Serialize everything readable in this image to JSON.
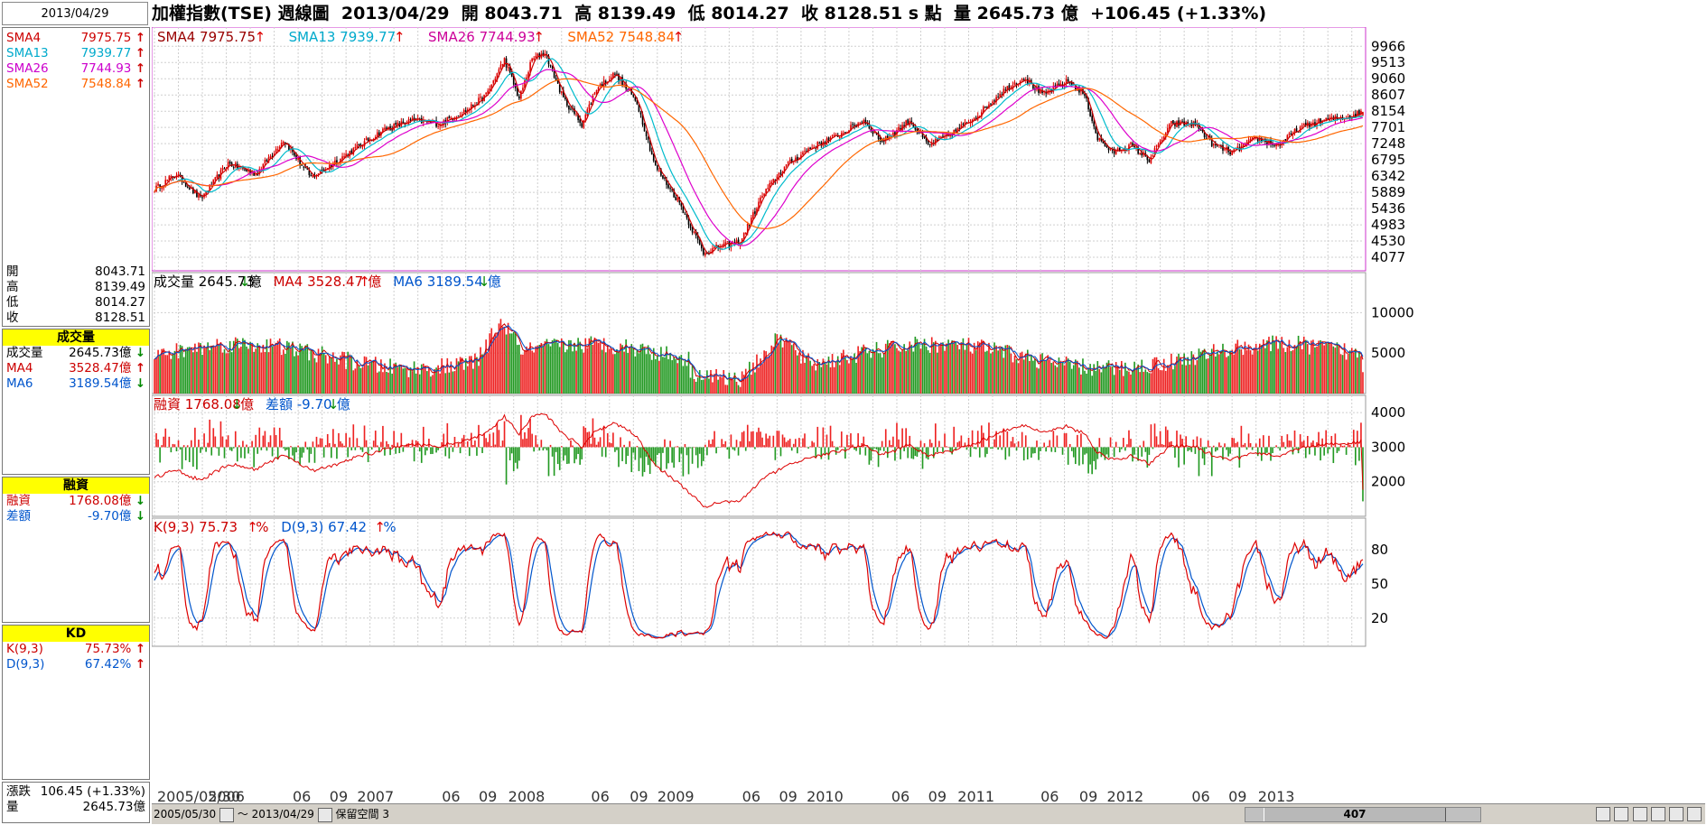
{
  "header": {
    "date": "2013/04/29",
    "title": "加權指數(TSE) 週線圖",
    "date_text": "2013/04/29",
    "open_label": "開",
    "open": "8043.71",
    "high_label": "高",
    "high": "8139.49",
    "low_label": "低",
    "low": "8014.27",
    "close_label": "收",
    "close": "8128.51",
    "unit": "s 點",
    "vol_label": "量",
    "volume": "2645.73 億",
    "change": "+106.45 (+1.33%)"
  },
  "left": {
    "ma": [
      {
        "label": "SMA4",
        "value": "7975.75",
        "color": "#cc0000"
      },
      {
        "label": "SMA13",
        "value": "7939.77",
        "color": "#00aacc"
      },
      {
        "label": "SMA26",
        "value": "7744.93",
        "color": "#cc00cc"
      },
      {
        "label": "SMA52",
        "value": "7548.84",
        "color": "#ff6600"
      }
    ],
    "ohlc": [
      {
        "label": "開",
        "value": "8043.71"
      },
      {
        "label": "高",
        "value": "8139.49"
      },
      {
        "label": "低",
        "value": "8014.27"
      },
      {
        "label": "收",
        "value": "8128.51"
      }
    ],
    "volume_title": "成交量",
    "volume_rows": [
      {
        "label": "成交量",
        "value": "2645.73億",
        "color": "#000000"
      },
      {
        "label": "MA4",
        "value": "3528.47億",
        "color": "#cc0000"
      },
      {
        "label": "MA6",
        "value": "3189.54億",
        "color": "#0055cc"
      }
    ],
    "margin_title": "融資",
    "margin_rows": [
      {
        "label": "融資",
        "value": "1768.08億",
        "color": "#cc0000"
      },
      {
        "label": "差額",
        "value": "-9.70億",
        "color": "#0055cc"
      }
    ],
    "kd_title": "KD",
    "kd_rows": [
      {
        "label": "K(9,3)",
        "value": "75.73%",
        "color": "#cc0000"
      },
      {
        "label": "D(9,3)",
        "value": "67.42%",
        "color": "#0055cc"
      }
    ],
    "footer": [
      {
        "label": "漲跌",
        "value": "106.45 (+1.33%)"
      },
      {
        "label": "量",
        "value": "2645.73億"
      }
    ]
  },
  "panels": {
    "price_legend": [
      {
        "text": "SMA4 7975.75",
        "color": "#990000"
      },
      {
        "text": "SMA13 7939.77",
        "color": "#00aacc"
      },
      {
        "text": "SMA26 7744.93",
        "color": "#cc0099"
      },
      {
        "text": "SMA52 7548.84",
        "color": "#ff6600"
      }
    ],
    "volume_legend": [
      {
        "text": "成交量 2645.73",
        "unit": "億",
        "color": "#000000"
      },
      {
        "text": "MA4 3528.47",
        "unit": "億",
        "color": "#cc0000"
      },
      {
        "text": "MA6 3189.54",
        "unit": "億",
        "color": "#0055cc"
      }
    ],
    "margin_legend": [
      {
        "text": "融資 1768.08",
        "unit": "億",
        "color": "#cc0000"
      },
      {
        "text": "差額 -9.70",
        "unit": "億",
        "color": "#0055cc"
      }
    ],
    "kd_legend": [
      {
        "text": "K(9,3) 75.73",
        "unit": "%",
        "color": "#cc0000"
      },
      {
        "text": "D(9,3) 67.42",
        "unit": "%",
        "color": "#0055cc"
      }
    ]
  },
  "controls": {
    "start_date": "2005/05/30",
    "end_date": "2013/04/29",
    "tilde": "～",
    "reserve_label": "保留空間",
    "reserve_value": "3",
    "scroll_value": "407"
  },
  "chart_data": {
    "type": "line",
    "x_labels": [
      "2005/05/30",
      "2006",
      "06",
      "09",
      "2007",
      "06",
      "09",
      "2008",
      "06",
      "09",
      "2009",
      "06",
      "09",
      "2010",
      "06",
      "09",
      "2011",
      "06",
      "09",
      "2012",
      "06",
      "09",
      "2013"
    ],
    "price": {
      "ylim": [
        3700,
        10300
      ],
      "yticks": [
        9966,
        9513,
        9060,
        8607,
        8154,
        7701,
        7248,
        6795,
        6342,
        5889,
        5436,
        4983,
        4530,
        4077
      ],
      "close_anchors": [
        [
          0,
          5980
        ],
        [
          12,
          6400
        ],
        [
          25,
          5700
        ],
        [
          40,
          6700
        ],
        [
          55,
          6400
        ],
        [
          70,
          7350
        ],
        [
          85,
          6300
        ],
        [
          100,
          6800
        ],
        [
          125,
          7650
        ],
        [
          140,
          7900
        ],
        [
          155,
          7800
        ],
        [
          170,
          8200
        ],
        [
          180,
          8600
        ],
        [
          190,
          9600
        ],
        [
          198,
          8500
        ],
        [
          205,
          9600
        ],
        [
          212,
          9800
        ],
        [
          222,
          8500
        ],
        [
          232,
          7800
        ],
        [
          240,
          8800
        ],
        [
          250,
          9200
        ],
        [
          262,
          8400
        ],
        [
          272,
          6600
        ],
        [
          285,
          5600
        ],
        [
          298,
          4200
        ],
        [
          308,
          4400
        ],
        [
          318,
          4500
        ],
        [
          330,
          5800
        ],
        [
          342,
          6600
        ],
        [
          355,
          7100
        ],
        [
          372,
          7500
        ],
        [
          385,
          7900
        ],
        [
          395,
          7300
        ],
        [
          410,
          7900
        ],
        [
          420,
          7200
        ],
        [
          435,
          7600
        ],
        [
          448,
          8100
        ],
        [
          460,
          8700
        ],
        [
          472,
          9100
        ],
        [
          482,
          8600
        ],
        [
          496,
          9000
        ],
        [
          505,
          8600
        ],
        [
          512,
          7400
        ],
        [
          520,
          7000
        ],
        [
          530,
          7200
        ],
        [
          540,
          6800
        ],
        [
          552,
          7800
        ],
        [
          565,
          7800
        ],
        [
          575,
          7200
        ],
        [
          585,
          7000
        ],
        [
          598,
          7400
        ],
        [
          610,
          7200
        ],
        [
          622,
          7700
        ],
        [
          635,
          7900
        ],
        [
          648,
          8000
        ],
        [
          656,
          8128.51
        ]
      ]
    },
    "volume": {
      "ylim": [
        0,
        14500
      ],
      "yticks": [
        10000,
        5000
      ]
    },
    "margin": {
      "ylim": [
        1000,
        4500
      ],
      "yticks": [
        4000,
        3000,
        2000
      ]
    },
    "kd": {
      "ylim": [
        0,
        100
      ],
      "yticks": [
        80,
        50,
        20
      ]
    },
    "weeks": 657
  }
}
